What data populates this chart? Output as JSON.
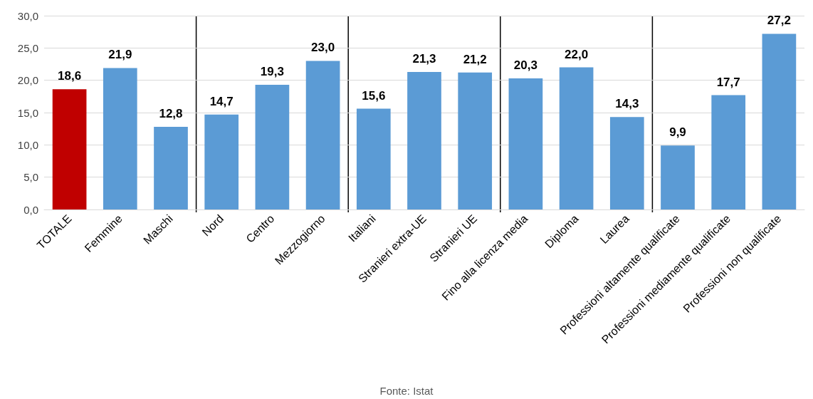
{
  "chart_data": {
    "type": "bar",
    "categories": [
      "TOTALE",
      "Femmine",
      "Maschi",
      "Nord",
      "Centro",
      "Mezzogiorno",
      "Italiani",
      "Stranieri extra-UE",
      "Stranieri UE",
      "Fino alla licenza media",
      "Diploma",
      "Laurea",
      "Professioni altamente qualificate",
      "Professioni mediamente qualificate",
      "Professioni non qualificate"
    ],
    "values": [
      18.6,
      21.9,
      12.8,
      14.7,
      19.3,
      23.0,
      15.6,
      21.3,
      21.2,
      20.3,
      22.0,
      14.3,
      9.9,
      17.7,
      27.2
    ],
    "colors": [
      "#c00000",
      "#5b9bd5",
      "#5b9bd5",
      "#5b9bd5",
      "#5b9bd5",
      "#5b9bd5",
      "#5b9bd5",
      "#5b9bd5",
      "#5b9bd5",
      "#5b9bd5",
      "#5b9bd5",
      "#5b9bd5",
      "#5b9bd5",
      "#5b9bd5",
      "#5b9bd5"
    ],
    "value_labels": [
      "18,6",
      "21,9",
      "12,8",
      "14,7",
      "19,3",
      "23,0",
      "15,6",
      "21,3",
      "21,2",
      "20,3",
      "22,0",
      "14,3",
      "9,9",
      "17,7",
      "27,2"
    ],
    "ylim": [
      0,
      30
    ],
    "yticks": [
      {
        "value": 0,
        "label": "0,0"
      },
      {
        "value": 5,
        "label": "5,0"
      },
      {
        "value": 10,
        "label": "10,0"
      },
      {
        "value": 15,
        "label": "15,0"
      },
      {
        "value": 20,
        "label": "20,0"
      },
      {
        "value": 25,
        "label": "25,0"
      },
      {
        "value": 30,
        "label": "30,0"
      }
    ],
    "grid": "y",
    "annotations": [
      "Fonte: Istat"
    ]
  }
}
